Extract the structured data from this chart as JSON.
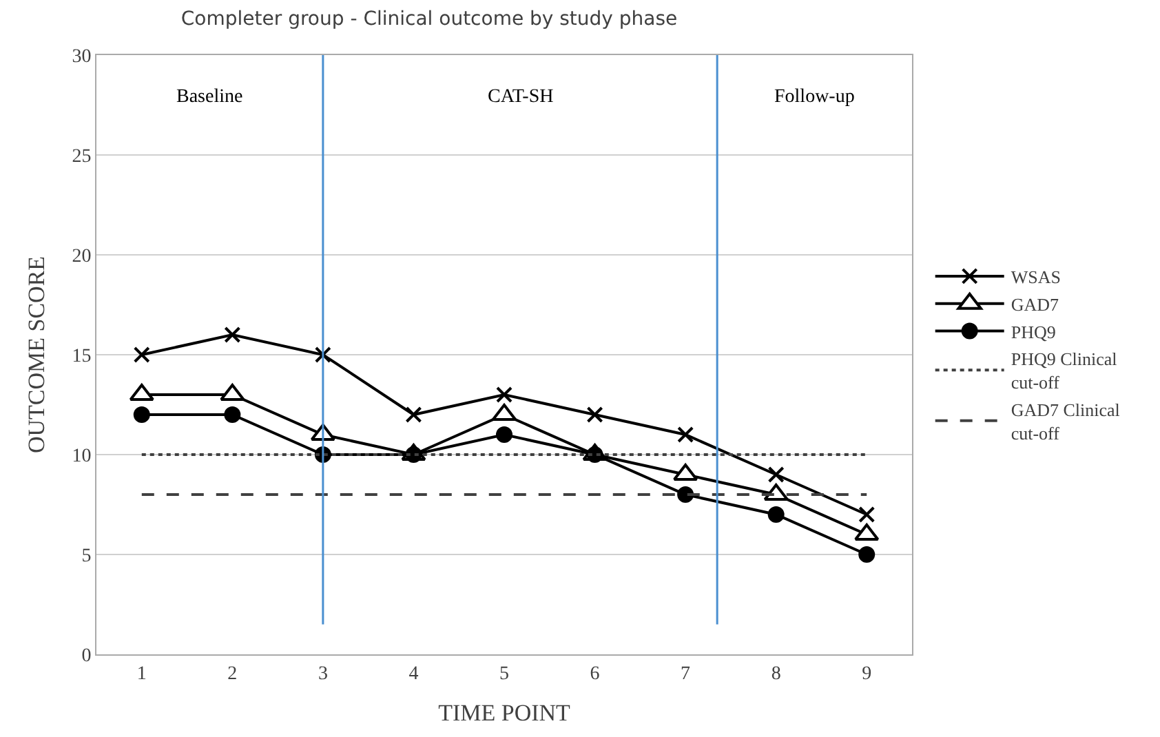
{
  "chart_data": {
    "type": "line",
    "title": "Completer group - Clinical outcome by study phase",
    "xlabel": "TIME POINT",
    "ylabel": "OUTCOME SCORE",
    "x": [
      1,
      2,
      3,
      4,
      5,
      6,
      7,
      8,
      9
    ],
    "xlim": [
      0.5,
      9.5
    ],
    "xticks": [
      1,
      2,
      3,
      4,
      5,
      6,
      7,
      8,
      9
    ],
    "ylim": [
      0,
      30
    ],
    "yticks": [
      0,
      5,
      10,
      15,
      20,
      25,
      30
    ],
    "grid": "y",
    "legend": "right",
    "series": [
      {
        "name": "WSAS",
        "color": "#000000",
        "marker": "cross",
        "values": [
          15,
          16,
          15,
          12,
          13,
          12,
          11,
          9,
          7
        ]
      },
      {
        "name": "GAD7",
        "color": "#000000",
        "marker": "triangle",
        "values": [
          13,
          13,
          11,
          10,
          12,
          10,
          9,
          8,
          6
        ]
      },
      {
        "name": "PHQ9",
        "color": "#000000",
        "marker": "circle",
        "values": [
          12,
          12,
          10,
          10,
          11,
          10,
          8,
          7,
          5
        ]
      },
      {
        "name": "PHQ9 Clinical cut-off",
        "color": "#404040",
        "marker": "none",
        "line_style": "dotted",
        "values": [
          10,
          10,
          10,
          10,
          10,
          10,
          10,
          10,
          10
        ]
      },
      {
        "name": "GAD7 Clinical cut-off",
        "color": "#404040",
        "marker": "none",
        "line_style": "dashed",
        "values": [
          8,
          8,
          8,
          8,
          8,
          8,
          8,
          8,
          8
        ]
      }
    ],
    "ref_lines": [
      {
        "axis": "x",
        "value": 3,
        "color": "#4a8fd0"
      },
      {
        "axis": "x",
        "value": 7.35,
        "color": "#4a8fd0"
      }
    ],
    "annotations": [
      "Baseline",
      "CAT-SH",
      "Follow-up"
    ]
  }
}
